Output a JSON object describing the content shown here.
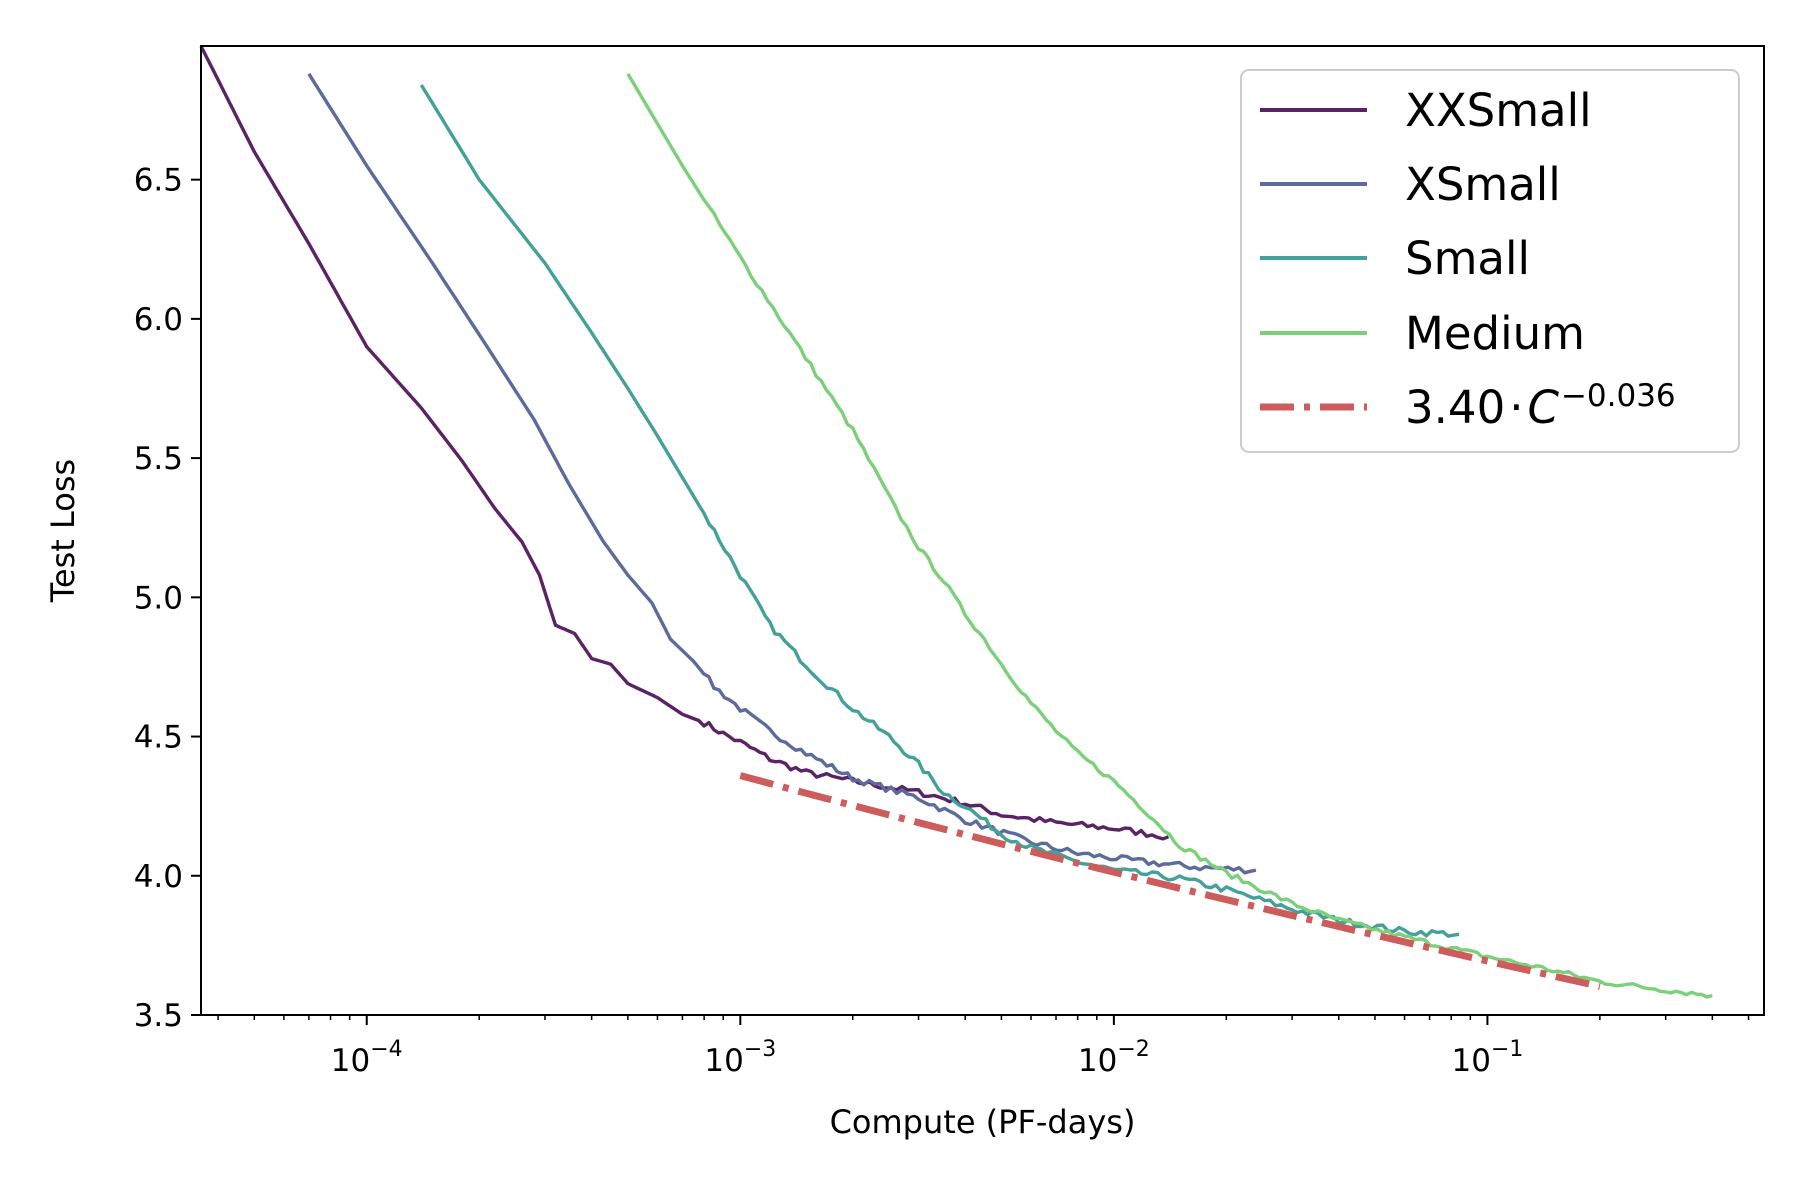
{
  "chart_data": {
    "type": "line",
    "title": "",
    "xlabel": "Compute (PF-days)",
    "ylabel": "Test Loss",
    "xscale": "log",
    "xlim": [
      3.6e-05,
      0.55
    ],
    "ylim": [
      3.5,
      6.98
    ],
    "x_ticks": [
      {
        "value": 0.0001,
        "mantissa": "10",
        "exponent": "−4"
      },
      {
        "value": 0.001,
        "mantissa": "10",
        "exponent": "−3"
      },
      {
        "value": 0.01,
        "mantissa": "10",
        "exponent": "−2"
      },
      {
        "value": 0.1,
        "mantissa": "10",
        "exponent": "−1"
      }
    ],
    "y_ticks": [
      {
        "value": 3.5,
        "label": "3.5"
      },
      {
        "value": 4.0,
        "label": "4.0"
      },
      {
        "value": 4.5,
        "label": "4.5"
      },
      {
        "value": 5.0,
        "label": "5.0"
      },
      {
        "value": 5.5,
        "label": "5.5"
      },
      {
        "value": 6.0,
        "label": "6.0"
      },
      {
        "value": 6.5,
        "label": "6.5"
      }
    ],
    "grid": false,
    "legend_position": "top-right",
    "series": [
      {
        "name": "XXSmall",
        "color": "#5b2366",
        "x": [
          3.6e-05,
          5e-05,
          7e-05,
          0.0001,
          0.00014,
          0.00018,
          0.00022,
          0.00026,
          0.00029,
          0.00032,
          0.00036,
          0.0004,
          0.00045,
          0.0005,
          0.0006,
          0.0007,
          0.0008,
          0.0009,
          0.001,
          0.0012,
          0.0015,
          0.002,
          0.003,
          0.004,
          0.005,
          0.007,
          0.01,
          0.014
        ],
        "y": [
          6.98,
          6.6,
          6.27,
          5.9,
          5.68,
          5.49,
          5.32,
          5.2,
          5.08,
          4.9,
          4.87,
          4.78,
          4.76,
          4.69,
          4.64,
          4.58,
          4.55,
          4.51,
          4.48,
          4.42,
          4.37,
          4.34,
          4.3,
          4.26,
          4.22,
          4.19,
          4.17,
          4.14
        ],
        "noise": 0.012
      },
      {
        "name": "XSmall",
        "color": "#5b6b9b",
        "x": [
          7e-05,
          0.0001,
          0.00015,
          0.00021,
          0.00028,
          0.00035,
          0.00043,
          0.0005,
          0.00058,
          0.00065,
          0.00075,
          0.00085,
          0.001,
          0.0012,
          0.0015,
          0.002,
          0.003,
          0.004,
          0.006,
          0.008,
          0.012,
          0.017,
          0.024
        ],
        "y": [
          6.88,
          6.55,
          6.2,
          5.9,
          5.64,
          5.4,
          5.2,
          5.08,
          4.98,
          4.85,
          4.77,
          4.68,
          4.6,
          4.52,
          4.44,
          4.35,
          4.28,
          4.2,
          4.12,
          4.08,
          4.05,
          4.03,
          4.02
        ],
        "noise": 0.012
      },
      {
        "name": "Small",
        "color": "#43a199",
        "x": [
          0.00014,
          0.0002,
          0.0003,
          0.0004,
          0.0005,
          0.0006,
          0.0007,
          0.0008,
          0.001,
          0.0012,
          0.0014,
          0.0016,
          0.002,
          0.0025,
          0.003,
          0.0035,
          0.004,
          0.005,
          0.006,
          0.008,
          0.01,
          0.015,
          0.02,
          0.03,
          0.04,
          0.06,
          0.084
        ],
        "y": [
          6.84,
          6.5,
          6.2,
          5.95,
          5.75,
          5.58,
          5.43,
          5.3,
          5.08,
          4.9,
          4.8,
          4.72,
          4.6,
          4.5,
          4.4,
          4.3,
          4.25,
          4.15,
          4.1,
          4.05,
          4.02,
          3.99,
          3.95,
          3.88,
          3.84,
          3.8,
          3.79
        ],
        "noise": 0.012
      },
      {
        "name": "Medium",
        "color": "#7dd07a",
        "x": [
          0.0005,
          0.0007,
          0.001,
          0.0014,
          0.002,
          0.0026,
          0.003,
          0.0035,
          0.004,
          0.0045,
          0.005,
          0.006,
          0.007,
          0.008,
          0.01,
          0.012,
          0.015,
          0.02,
          0.03,
          0.04,
          0.06,
          0.08,
          0.1,
          0.15,
          0.2,
          0.3,
          0.4
        ],
        "y": [
          6.88,
          6.55,
          6.22,
          5.92,
          5.6,
          5.32,
          5.18,
          5.06,
          4.94,
          4.85,
          4.76,
          4.62,
          4.52,
          4.44,
          4.34,
          4.24,
          4.11,
          4.01,
          3.9,
          3.84,
          3.78,
          3.74,
          3.71,
          3.66,
          3.62,
          3.59,
          3.57
        ],
        "noise": 0.01
      }
    ],
    "fit": {
      "name_coefficient": "3.40",
      "name_dot": "·",
      "name_variable": "C",
      "name_exponent": "−0.036",
      "coefficient": 3.4,
      "exponent": -0.036,
      "x_range": [
        0.001,
        0.2
      ],
      "color": "#cd5c5c",
      "style": "dashdot"
    }
  }
}
